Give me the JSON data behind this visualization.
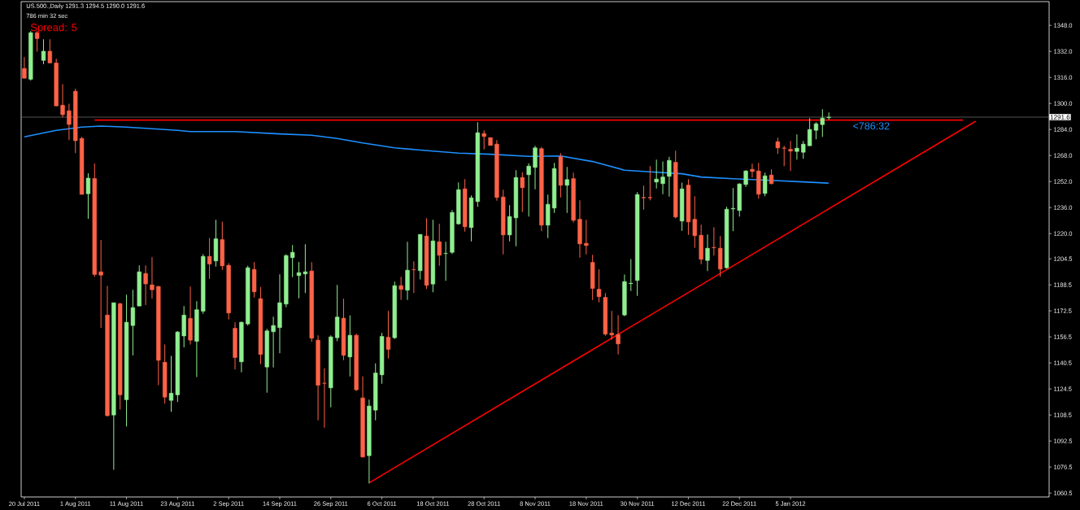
{
  "chart_data": {
    "type": "candlestick",
    "categories": [
      "20 Jul 2011",
      null,
      null,
      null,
      null,
      null,
      null,
      null,
      "1 Aug 2011",
      null,
      null,
      null,
      null,
      null,
      null,
      null,
      "11 Aug 2011",
      null,
      null,
      null,
      null,
      null,
      null,
      null,
      "23 Aug 2011",
      null,
      null,
      null,
      null,
      null,
      null,
      null,
      "2 Sep 2011",
      null,
      null,
      null,
      null,
      null,
      null,
      null,
      "14 Sep 2011",
      null,
      null,
      null,
      null,
      null,
      null,
      null,
      "26 Sep 2011",
      null,
      null,
      null,
      null,
      null,
      null,
      null,
      "6 Oct 2011",
      null,
      null,
      null,
      null,
      null,
      null,
      null,
      "18 Oct 2011",
      null,
      null,
      null,
      null,
      null,
      null,
      null,
      "28 Oct 2011",
      null,
      null,
      null,
      null,
      null,
      null,
      null,
      "8 Nov 2011",
      null,
      null,
      null,
      null,
      null,
      null,
      null,
      "18 Nov 2011",
      null,
      null,
      null,
      null,
      null,
      null,
      null,
      "30 Nov 2011",
      null,
      null,
      null,
      null,
      null,
      null,
      null,
      "12 Dec 2011",
      null,
      null,
      null,
      null,
      null,
      null,
      null,
      "22 Dec 2011",
      null,
      null,
      null,
      null,
      null,
      null,
      null,
      "5 Jan 2012",
      null,
      null,
      null,
      null,
      null,
      null,
      null,
      null,
      null,
      null,
      null,
      null,
      null,
      null,
      null,
      null,
      null,
      null,
      null,
      null,
      null,
      null,
      null,
      null,
      null,
      null,
      null,
      null,
      null,
      null,
      null,
      null,
      null,
      null,
      null,
      null,
      null,
      null,
      null,
      null
    ],
    "ohlc": [
      [
        1321.5,
        1328.5,
        1315.5,
        1315.5
      ],
      [
        1314.9,
        1344.5,
        1314.1,
        1343.5
      ],
      [
        1343.5,
        1344.5,
        1331.9,
        1339.9
      ],
      [
        1326.5,
        1339.5,
        1324.1,
        1332.1
      ],
      [
        1332.1,
        1339.5,
        1324.9,
        1324.9
      ],
      [
        1324.9,
        1327.5,
        1298.5,
        1298.5
      ],
      [
        1298.9,
        1311.9,
        1291.5,
        1293.1
      ],
      [
        1295.5,
        1299.9,
        1277.5,
        1287.1
      ],
      [
        1307.5,
        1309.1,
        1269.5,
        1277.1
      ],
      [
        1278.5,
        1279.5,
        1244.1,
        1244.1
      ],
      [
        1244.5,
        1257.1,
        1229.1,
        1254.1
      ],
      [
        1253.9,
        1263.1,
        1193.5,
        1194.9
      ],
      [
        1196.5,
        1216.1,
        1162.1,
        1194.5
      ],
      [
        1169.9,
        1187.9,
        1107.5,
        1108.1
      ],
      [
        1108.5,
        1177.5,
        1074.9,
        1177.5
      ],
      [
        1176.9,
        1177.5,
        1111.9,
        1120.9
      ],
      [
        1117.9,
        1182.5,
        1101.5,
        1165.5
      ],
      [
        1163.5,
        1185.5,
        1145.1,
        1174.5
      ],
      [
        1175.5,
        1200.5,
        1175.5,
        1196.5
      ],
      [
        1195.5,
        1200.5,
        1176.1,
        1189.1
      ],
      [
        1188.5,
        1205.5,
        1180.1,
        1185.5
      ],
      [
        1187.5,
        1187.9,
        1126.9,
        1142.1
      ],
      [
        1140.9,
        1151.9,
        1115.5,
        1119.5
      ],
      [
        1117.5,
        1144.9,
        1110.5,
        1121.9
      ],
      [
        1120.9,
        1160.1,
        1116.5,
        1159.5
      ],
      [
        1157.1,
        1175.5,
        1150.1,
        1169.9
      ],
      [
        1167.9,
        1187.5,
        1151.9,
        1154.5
      ],
      [
        1153.8,
        1178.5,
        1131.8,
        1173.2
      ],
      [
        1172.3,
        1207.3,
        1170.7,
        1206
      ],
      [
        1206,
        1217.3,
        1192.2,
        1201.3
      ],
      [
        1203.2,
        1228.5,
        1199.7,
        1216.8
      ],
      [
        1216.3,
        1227.3,
        1197.7,
        1200.2
      ],
      [
        1200.5,
        1201.8,
        1167.2,
        1171.2
      ],
      [
        1161.8,
        1165.5,
        1136.5,
        1143.8
      ],
      [
        1141.2,
        1166,
        1134.7,
        1165.5
      ],
      [
        1164.5,
        1200.2,
        1163.5,
        1199
      ],
      [
        1198,
        1202.5,
        1180.7,
        1184.2
      ],
      [
        1180,
        1187.2,
        1139.7,
        1145.7
      ],
      [
        1138,
        1161.5,
        1122.2,
        1160.2
      ],
      [
        1159.7,
        1169,
        1137.7,
        1163.5
      ],
      [
        1162.2,
        1195,
        1146.5,
        1177.5
      ],
      [
        1176.7,
        1207.3,
        1174.7,
        1206.5
      ],
      [
        1205.2,
        1213,
        1193.2,
        1208.5
      ],
      [
        1194.2,
        1202.5,
        1180.2,
        1196
      ],
      [
        1195.2,
        1213.5,
        1183.5,
        1196.5
      ],
      [
        1197,
        1202.5,
        1153.5,
        1155.7
      ],
      [
        1154.5,
        1157.5,
        1105.2,
        1126.8
      ],
      [
        1128,
        1137.2,
        1100.7,
        1128
      ],
      [
        1125.2,
        1157.5,
        1113.2,
        1156.5
      ],
      [
        1156,
        1188.5,
        1153.8,
        1168.7
      ],
      [
        1168,
        1180,
        1142.2,
        1145.2
      ],
      [
        1144.2,
        1169.7,
        1132.2,
        1157.5
      ],
      [
        1157.5,
        1158.5,
        1123.2,
        1124
      ],
      [
        1119,
        1132.2,
        1082.3,
        1082.7
      ],
      [
        1083.5,
        1118,
        1066.5,
        1114
      ],
      [
        1111.5,
        1140.2,
        1105.2,
        1134.3
      ],
      [
        1133.2,
        1159,
        1127.7,
        1156.8
      ],
      [
        1156.3,
        1172.5,
        1143.2,
        1148.8
      ],
      [
        1156,
        1190.5,
        1155.2,
        1188
      ],
      [
        1188,
        1193.5,
        1179.2,
        1185.7
      ],
      [
        1185.2,
        1215,
        1179.2,
        1197.5
      ],
      [
        1197.8,
        1203,
        1183.5,
        1197.8
      ],
      [
        1197.2,
        1219.5,
        1191.8,
        1219.5
      ],
      [
        1218.5,
        1229.5,
        1186,
        1188.2
      ],
      [
        1189,
        1228.5,
        1184,
        1215.5
      ],
      [
        1215,
        1226,
        1200.2,
        1206.7
      ],
      [
        1207.8,
        1215,
        1191,
        1207.8
      ],
      [
        1208.5,
        1234.5,
        1207.5,
        1233
      ],
      [
        1226,
        1251.5,
        1225.5,
        1247
      ],
      [
        1247.5,
        1253.5,
        1221.2,
        1224.2
      ],
      [
        1223.7,
        1243.5,
        1215.2,
        1242
      ],
      [
        1239.7,
        1288.5,
        1236.5,
        1282
      ],
      [
        1281.5,
        1283.5,
        1271.7,
        1279.7
      ],
      [
        1279,
        1279,
        1274.2,
        1274.2
      ],
      [
        1275,
        1277.5,
        1240.2,
        1242.2
      ],
      [
        1242.5,
        1247,
        1207.2,
        1219.2
      ],
      [
        1219.2,
        1237.5,
        1215.2,
        1230.5
      ],
      [
        1229.7,
        1259,
        1212.2,
        1254.5
      ],
      [
        1254.5,
        1257.7,
        1233.2,
        1248.2
      ],
      [
        1256.2,
        1263.2,
        1230.5,
        1261.5
      ],
      [
        1260.7,
        1274,
        1247.2,
        1272.7
      ],
      [
        1272.2,
        1273.2,
        1221.5,
        1225.2
      ],
      [
        1225.2,
        1244,
        1217.2,
        1238
      ],
      [
        1235.7,
        1263.5,
        1232.7,
        1260
      ],
      [
        1267.2,
        1269.5,
        1242.2,
        1249.7
      ],
      [
        1249.7,
        1261,
        1232.7,
        1253.2
      ],
      [
        1253.8,
        1257.5,
        1226.8,
        1228.2
      ],
      [
        1228.8,
        1240.5,
        1205.2,
        1213.7
      ],
      [
        1214,
        1228.5,
        1207.2,
        1212.7
      ],
      [
        1202.3,
        1207,
        1179.2,
        1186.3
      ],
      [
        1185.8,
        1198,
        1177.7,
        1181.2
      ],
      [
        1180.8,
        1183.5,
        1157.2,
        1158.2
      ],
      [
        1158.8,
        1172.5,
        1154.8,
        1157.7
      ],
      [
        1158,
        1169.8,
        1145.7,
        1152.2
      ],
      [
        1170,
        1194.8,
        1169.2,
        1190.5
      ],
      [
        1189.3,
        1204.3,
        1184.7,
        1189.5
      ],
      [
        1191.2,
        1245.5,
        1181.7,
        1244
      ],
      [
        1242.2,
        1249.5,
        1234.7,
        1242
      ],
      [
        1242.2,
        1261.5,
        1240.5,
        1242
      ],
      [
        1251.7,
        1265.5,
        1247.7,
        1253.5
      ],
      [
        1250.7,
        1264.3,
        1244.2,
        1254.8
      ],
      [
        1255.2,
        1267.2,
        1242.7,
        1265
      ],
      [
        1263.8,
        1271,
        1229.3,
        1230.2
      ],
      [
        1227.7,
        1251.3,
        1221.7,
        1247.5
      ],
      [
        1249.8,
        1253.5,
        1219.2,
        1227.2
      ],
      [
        1228.8,
        1243,
        1211.2,
        1218.7
      ],
      [
        1219,
        1225.5,
        1201.2,
        1204.2
      ],
      [
        1203.5,
        1219.5,
        1197,
        1211
      ],
      [
        1211.5,
        1224,
        1206.5,
        1211.3
      ],
      [
        1211,
        1218.5,
        1193.5,
        1198.2
      ],
      [
        1199,
        1236.5,
        1198.5,
        1235
      ],
      [
        1235.2,
        1248,
        1221.5,
        1235.5
      ],
      [
        1234.2,
        1251,
        1230.5,
        1250.5
      ],
      [
        1250.2,
        1259,
        1248.7,
        1258.5
      ],
      [
        1259.5,
        1263,
        1254.5,
        1258.2
      ],
      [
        1258.5,
        1263.5,
        1241.5,
        1244.2
      ],
      [
        1244.7,
        1257.5,
        1243,
        1255.5
      ],
      [
        1256,
        1259.5,
        1250.2,
        1250.7
      ],
      [
        1276.5,
        1279,
        1269,
        1272.7
      ],
      [
        1272.6,
        1274,
        1261.5,
        1272.5
      ],
      [
        1271.8,
        1277,
        1258.5,
        1270.7
      ],
      [
        1270.5,
        1281,
        1265.5,
        1272.5
      ],
      [
        1270,
        1277,
        1266,
        1275
      ],
      [
        1274,
        1291,
        1274,
        1284
      ],
      [
        1283.5,
        1288.5,
        1278,
        1287.5
      ],
      [
        1287,
        1296.5,
        1279.5,
        1291
      ],
      [
        1291.3,
        1294.5,
        1290,
        1291.6
      ],
      null,
      null,
      null,
      null,
      null,
      null,
      null,
      null,
      null,
      null,
      null,
      null,
      null,
      null,
      null,
      null,
      null,
      null,
      null,
      null,
      null,
      null,
      null,
      null,
      null,
      null,
      null,
      null,
      null,
      null,
      null,
      null,
      null,
      null
    ],
    "colors": [
      "#ff6347",
      "#90ee90",
      "#ff6347",
      "#90ee90",
      "#ff6347",
      "#ff6347",
      "#ff6347",
      "#ff6347",
      "#ff6347",
      "#ff6347",
      "#90ee90",
      "#ff6347",
      "#ff6347",
      "#ff6347",
      "#90ee90",
      "#ff6347",
      "#90ee90",
      "#90ee90",
      "#90ee90",
      "#ff6347",
      "#ff6347",
      "#ff6347",
      "#ff6347",
      "#90ee90",
      "#90ee90",
      "#90ee90",
      "#ff6347",
      "#90ee90",
      "#90ee90",
      "#ff6347",
      "#90ee90",
      "#ff6347",
      "#ff6347",
      "#ff6347",
      "#90ee90",
      "#90ee90",
      "#ff6347",
      "#ff6347",
      "#90ee90",
      "#90ee90",
      "#90ee90",
      "#90ee90",
      "#90ee90",
      "#90ee90",
      "#90ee90",
      "#ff6347",
      "#ff6347",
      "#ff6347",
      "#90ee90",
      "#90ee90",
      "#ff6347",
      "#90ee90",
      "#ff6347",
      "#ff6347",
      "#90ee90",
      "#90ee90",
      "#90ee90",
      "#ff6347",
      "#90ee90",
      "#ff6347",
      "#90ee90",
      "#ff6347",
      "#90ee90",
      "#ff6347",
      "#90ee90",
      "#ff6347",
      "#90ee90",
      "#90ee90",
      "#90ee90",
      "#ff6347",
      "#90ee90",
      "#90ee90",
      "#ff6347",
      "#ff6347",
      "#ff6347",
      "#ff6347",
      "#90ee90",
      "#90ee90",
      "#ff6347",
      "#90ee90",
      "#90ee90",
      "#ff6347",
      "#90ee90",
      "#90ee90",
      "#ff6347",
      "#90ee90",
      "#ff6347",
      "#ff6347",
      "#ff6347",
      "#ff6347",
      "#ff6347",
      "#ff6347",
      "#ff6347",
      "#ff6347",
      "#90ee90",
      "#90ee90",
      "#90ee90",
      "#ff6347",
      "#ff6347",
      "#90ee90",
      "#90ee90",
      "#90ee90",
      "#ff6347",
      "#90ee90",
      "#ff6347",
      "#ff6347",
      "#ff6347",
      "#90ee90",
      "#ff6347",
      "#ff6347",
      "#90ee90",
      "#90ee90",
      "#90ee90",
      "#90ee90",
      "#ff6347",
      "#ff6347",
      "#90ee90",
      "#ff6347",
      "#ff6347",
      "#ff6347",
      "#ff6347",
      "#90ee90",
      "#90ee90",
      "#90ee90",
      "#90ee90",
      "#90ee90",
      "#90ee90",
      null,
      null,
      null,
      null,
      null,
      null,
      null,
      null,
      null,
      null,
      null,
      null,
      null,
      null,
      null,
      null,
      null,
      null,
      null,
      null,
      null,
      null,
      null,
      null,
      null,
      null,
      null,
      null,
      null,
      null,
      null,
      null,
      null,
      null
    ],
    "series": [
      {
        "type": "line",
        "color": "#1e90ff",
        "values": [
          1279.5,
          null,
          null,
          null,
          null,
          1283.5,
          null,
          null,
          null,
          1285.5,
          null,
          null,
          1286.1,
          null,
          null,
          null,
          1285.5,
          null,
          null,
          null,
          1284.5,
          null,
          null,
          null,
          1283.5,
          null,
          1282.7,
          null,
          null,
          null,
          null,
          null,
          null,
          1282.7,
          null,
          null,
          null,
          null,
          null,
          null,
          1281.3,
          null,
          null,
          null,
          null,
          1280.5,
          null,
          null,
          null,
          1278.5,
          null,
          null,
          null,
          1275.7,
          null,
          null,
          null,
          null,
          1272.7,
          null,
          null,
          null,
          null,
          null,
          1270.7,
          null,
          null,
          null,
          1269.5,
          null,
          null,
          null,
          null,
          1268.8,
          null,
          null,
          null,
          null,
          null,
          1267.5,
          null,
          null,
          null,
          null,
          1267.7,
          null,
          null,
          null,
          null,
          1264.3,
          null,
          null,
          null,
          null,
          1259,
          null,
          null,
          null,
          1258,
          null,
          null,
          null,
          null,
          1256.8,
          null,
          null,
          1254.8,
          null,
          null,
          null,
          null,
          1253.7,
          null,
          null,
          null,
          null,
          null,
          1252.7,
          null,
          null,
          null,
          null,
          1251.8,
          null,
          null,
          null,
          1251,
          null,
          null,
          null,
          null,
          null,
          null,
          null,
          null,
          null,
          null,
          null,
          null,
          null,
          null,
          null,
          null,
          null,
          null,
          null,
          null,
          null,
          null,
          null,
          null,
          null,
          null,
          null,
          null,
          null,
          null,
          null,
          null,
          null,
          null
        ]
      },
      {
        "type": "line",
        "color": "#ff0000",
        "values": [
          null,
          null,
          null,
          null,
          null,
          null,
          null,
          null,
          null,
          null,
          null,
          1289.8,
          null,
          null,
          null,
          null,
          null,
          null,
          null,
          null,
          null,
          null,
          null,
          null,
          null,
          null,
          null,
          null,
          null,
          null,
          null,
          null,
          null,
          null,
          null,
          null,
          null,
          null,
          null,
          null,
          null,
          null,
          null,
          null,
          null,
          null,
          null,
          null,
          null,
          null,
          null,
          null,
          null,
          null,
          null,
          null,
          null,
          null,
          null,
          null,
          null,
          null,
          null,
          null,
          null,
          null,
          null,
          null,
          null,
          null,
          null,
          null,
          null,
          null,
          null,
          null,
          null,
          null,
          null,
          null,
          null,
          null,
          null,
          null,
          null,
          null,
          null,
          null,
          null,
          null,
          null,
          null,
          null,
          null,
          null,
          null,
          null,
          null,
          null,
          null,
          null,
          null,
          null,
          null,
          null,
          null,
          null,
          null,
          null,
          null,
          null,
          null,
          null,
          null,
          null,
          null,
          null,
          null,
          null,
          null,
          null,
          null,
          null,
          null,
          null,
          null,
          null,
          null,
          null,
          null,
          null,
          null,
          null,
          null,
          null,
          null,
          null,
          null,
          null,
          null,
          null,
          null,
          null,
          null,
          null,
          null,
          null,
          1289.8,
          null,
          null,
          null,
          null,
          null,
          null,
          null,
          null,
          null,
          null,
          null,
          null,
          null
        ]
      },
      {
        "type": "line",
        "color": "#ff0000",
        "values": [
          null,
          null,
          null,
          null,
          null,
          null,
          null,
          null,
          null,
          null,
          null,
          null,
          null,
          null,
          null,
          null,
          null,
          null,
          null,
          null,
          null,
          null,
          null,
          null,
          null,
          null,
          null,
          null,
          null,
          null,
          null,
          null,
          null,
          null,
          null,
          null,
          null,
          null,
          null,
          null,
          null,
          null,
          null,
          null,
          null,
          null,
          null,
          null,
          null,
          null,
          null,
          null,
          null,
          null,
          1066.8,
          null,
          null,
          null,
          null,
          null,
          null,
          null,
          null,
          null,
          null,
          null,
          null,
          null,
          null,
          null,
          null,
          null,
          null,
          null,
          null,
          null,
          null,
          null,
          null,
          null,
          null,
          null,
          null,
          null,
          null,
          null,
          null,
          null,
          null,
          null,
          null,
          null,
          null,
          null,
          null,
          null,
          null,
          null,
          null,
          null,
          null,
          null,
          null,
          null,
          null,
          null,
          null,
          null,
          null,
          null,
          null,
          null,
          null,
          null,
          null,
          null,
          null,
          null,
          null,
          null,
          null,
          null,
          null,
          null,
          null,
          null,
          null,
          null,
          null,
          null,
          null,
          null,
          null,
          null,
          null,
          null,
          null,
          null,
          null,
          null,
          null,
          null,
          null,
          null,
          null,
          null,
          null,
          null,
          null,
          1289.1,
          null,
          null,
          null,
          null,
          null,
          null,
          null,
          null,
          null,
          null,
          null
        ]
      }
    ],
    "ylim": [
      1058.1,
      1362.6
    ],
    "yticks": [
      {
        "value": 1348,
        "label": "1348.0"
      },
      {
        "value": 1332,
        "label": "1332.0"
      },
      {
        "value": 1316,
        "label": "1316.0"
      },
      {
        "value": 1300,
        "label": "1300.0"
      },
      {
        "value": 1284,
        "label": "1284.0"
      },
      {
        "value": 1268,
        "label": "1268.0"
      },
      {
        "value": 1252,
        "label": "1252.0"
      },
      {
        "value": 1236,
        "label": "1236.0"
      },
      {
        "value": 1220,
        "label": "1220.0"
      },
      {
        "value": 1204.5,
        "label": "1204.5"
      },
      {
        "value": 1188.5,
        "label": "1188.5"
      },
      {
        "value": 1172.5,
        "label": "1172.5"
      },
      {
        "value": 1156.5,
        "label": "1156.5"
      },
      {
        "value": 1140.5,
        "label": "1140.5"
      },
      {
        "value": 1124.5,
        "label": "1124.5"
      },
      {
        "value": 1108.5,
        "label": "1108.5"
      },
      {
        "value": 1092.5,
        "label": "1092.5"
      },
      {
        "value": 1076.5,
        "label": "1076.5"
      },
      {
        "value": 1060.5,
        "label": "1060.5"
      }
    ],
    "ref_lines": [
      {
        "axis": "y",
        "value": 1291.6,
        "label": "1291.6",
        "color": "#8c8c8c"
      }
    ],
    "annotations": [
      "US.500.,Daily  1291.3 1294.5 1290.0 1291.6",
      "786 min 32 sec",
      "Spread: 5",
      "<786:32"
    ]
  }
}
